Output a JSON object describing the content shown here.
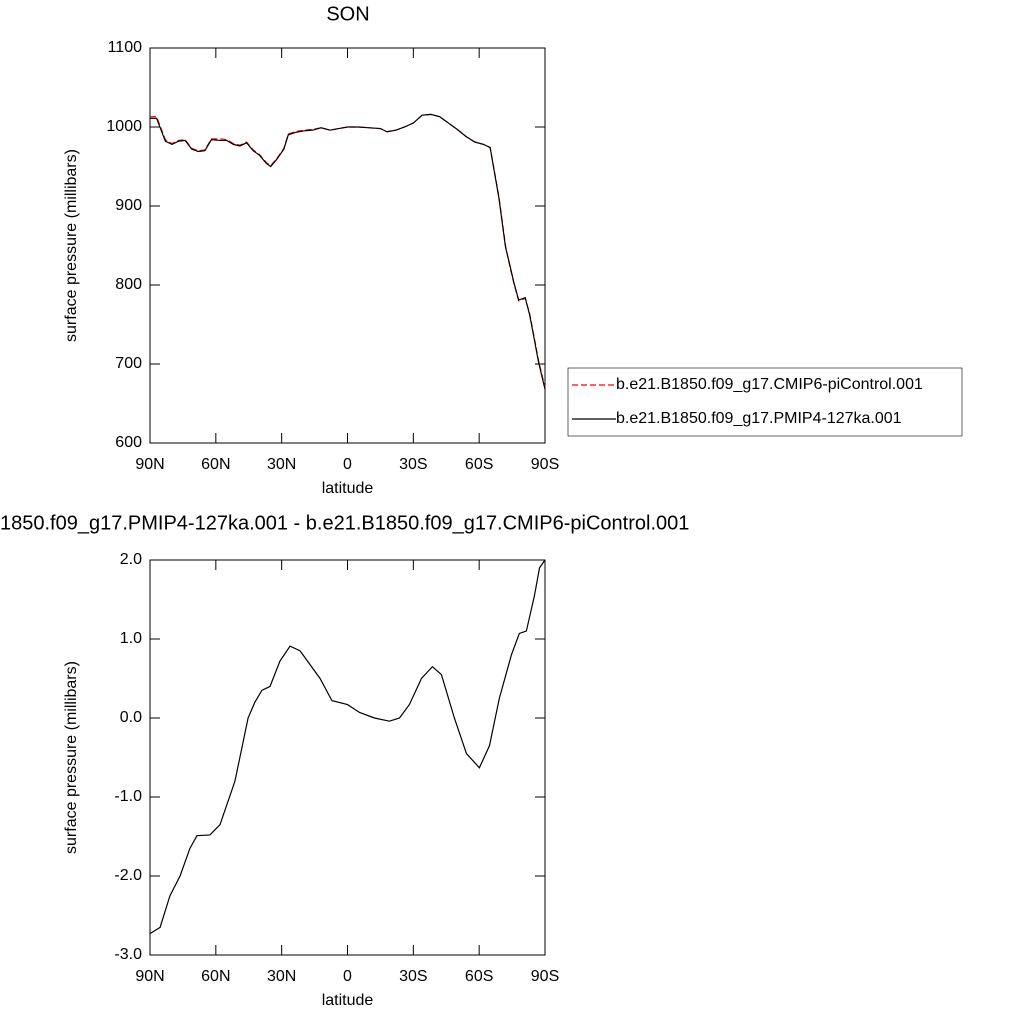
{
  "chart_data": [
    {
      "type": "line",
      "title": "SON",
      "xlabel": "latitude",
      "ylabel": "surface pressure (millibars)",
      "x": [
        90,
        87,
        83,
        80,
        77,
        74,
        71,
        68,
        65,
        62,
        58,
        55,
        52,
        49,
        46,
        43,
        40,
        37,
        35,
        32,
        29,
        27,
        24,
        20,
        16,
        12,
        8,
        4,
        0,
        -5,
        -10,
        -15,
        -18,
        -22,
        -26,
        -30,
        -34,
        -38,
        -42,
        -46,
        -50,
        -54,
        -58,
        -62,
        -65,
        -69,
        -72,
        -74,
        -76,
        -78,
        -81,
        -83,
        -85,
        -87,
        -90
      ],
      "series": [
        {
          "name": "b.e21.B1850.f09_g17.CMIP6-piControl.001",
          "color": "#ff0000",
          "dash": true,
          "values": [
            1013,
            1013,
            984,
            979,
            983,
            984,
            973,
            970,
            971,
            985,
            985,
            984,
            979,
            977,
            981,
            971,
            965,
            955,
            951,
            961,
            973,
            991,
            994,
            996,
            997,
            999,
            996,
            998,
            1000,
            1000,
            999,
            998,
            994,
            996,
            1000,
            1005,
            1015,
            1016,
            1013,
            1005,
            997,
            988,
            981,
            978,
            974,
            912,
            850,
            823,
            800,
            780,
            783,
            764,
            735,
            705,
            670
          ]
        },
        {
          "name": "b.e21.B1850.f09_g17.PMIP4-127ka.001",
          "color": "#000000",
          "dash": false,
          "values": [
            1011,
            1011,
            982,
            978,
            982,
            983,
            972,
            969,
            970,
            984,
            983,
            983,
            978,
            976,
            980,
            970,
            964,
            954,
            950,
            960,
            972,
            990,
            993,
            995,
            996,
            999,
            996,
            998,
            1000,
            1000,
            999,
            998,
            994,
            996,
            1000,
            1005,
            1015,
            1016,
            1013,
            1005,
            997,
            988,
            981,
            978,
            974,
            910,
            848,
            825,
            801,
            781,
            784,
            762,
            733,
            703,
            668
          ]
        }
      ],
      "xlim": [
        90,
        -90
      ],
      "xticks": [
        {
          "value": 90,
          "label": "90N"
        },
        {
          "value": 60,
          "label": "60N"
        },
        {
          "value": 30,
          "label": "30N"
        },
        0,
        {
          "value": -30,
          "label": "30S"
        },
        {
          "value": -60,
          "label": "60S"
        },
        {
          "value": -90,
          "label": "90S"
        }
      ],
      "ylim": [
        600,
        1100
      ],
      "yticks": [
        600,
        700,
        800,
        900,
        1000,
        1100
      ],
      "legend": "right"
    },
    {
      "type": "line",
      "title": "1850.f09_g17.PMIP4-127ka.001 - b.e21.B1850.f09_g17.CMIP6-piControl.001",
      "xlabel": "latitude",
      "ylabel": "surface pressure (millibars)",
      "x": [
        90,
        85.4,
        80.9,
        76.3,
        71.8,
        68.6,
        62.7,
        58.1,
        51.3,
        45.3,
        42.2,
        39,
        35.3,
        30.8,
        26.2,
        21.6,
        12.5,
        7.1,
        0,
        -5.5,
        -12.3,
        -19.1,
        -23.7,
        -28.2,
        -33.7,
        -38.7,
        -42.8,
        -48.7,
        -54.2,
        -60.1,
        -64.7,
        -69.2,
        -74.7,
        -78.3,
        -81.5,
        -85.2,
        -87.5,
        -90
      ],
      "values": [
        -2.73,
        -2.65,
        -2.25,
        -2.0,
        -1.65,
        -1.49,
        -1.48,
        -1.35,
        -0.8,
        0.0,
        0.2,
        0.35,
        0.4,
        0.72,
        0.91,
        0.85,
        0.5,
        0.22,
        0.17,
        0.07,
        0.0,
        -0.04,
        0.0,
        0.17,
        0.5,
        0.65,
        0.55,
        0.0,
        -0.45,
        -0.63,
        -0.35,
        0.25,
        0.8,
        1.07,
        1.1,
        1.55,
        1.9,
        2.0
      ],
      "color": "#000000",
      "xlim": [
        90,
        -90
      ],
      "xticks": [
        {
          "value": 90,
          "label": "90N"
        },
        {
          "value": 60,
          "label": "60N"
        },
        {
          "value": 30,
          "label": "30N"
        },
        0,
        {
          "value": -30,
          "label": "30S"
        },
        {
          "value": -60,
          "label": "60S"
        },
        {
          "value": -90,
          "label": "90S"
        }
      ],
      "ylim": [
        -3,
        2
      ],
      "yticks": [
        {
          "value": -3,
          "label": "-3.0"
        },
        {
          "value": -2,
          "label": "-2.0"
        },
        {
          "value": -1,
          "label": "-1.0"
        },
        {
          "value": 0,
          "label": "0.0"
        },
        {
          "value": 1,
          "label": "1.0"
        },
        {
          "value": 2,
          "label": "2.0"
        }
      ]
    }
  ]
}
